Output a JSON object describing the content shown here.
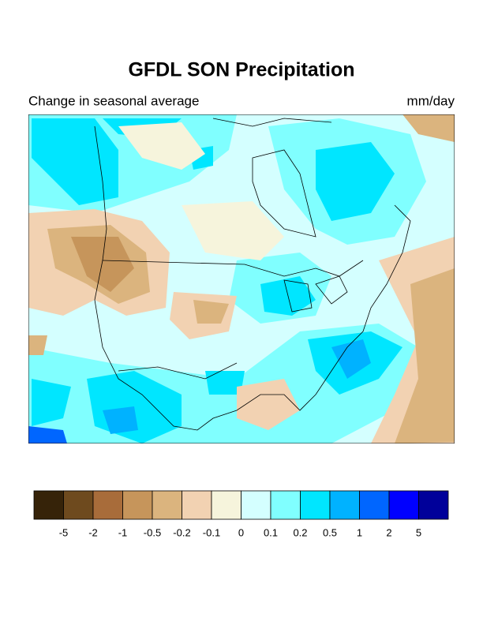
{
  "title": "GFDL SON Precipitation",
  "subtitle_left": "Change in seasonal average",
  "subtitle_right": "mm/day",
  "colorbar": {
    "colors": [
      "#362309",
      "#6e4a1e",
      "#a86c3a",
      "#c6955b",
      "#dbb47e",
      "#f2d2b2",
      "#f6f4dc",
      "#d4ffff",
      "#80ffff",
      "#00e6ff",
      "#00b2ff",
      "#0066ff",
      "#0000ff",
      "#00009a"
    ],
    "levels": [
      -5,
      -2,
      -1,
      -0.5,
      -0.2,
      -0.1,
      0,
      0.1,
      0.2,
      0.5,
      1,
      2,
      5
    ]
  }
}
